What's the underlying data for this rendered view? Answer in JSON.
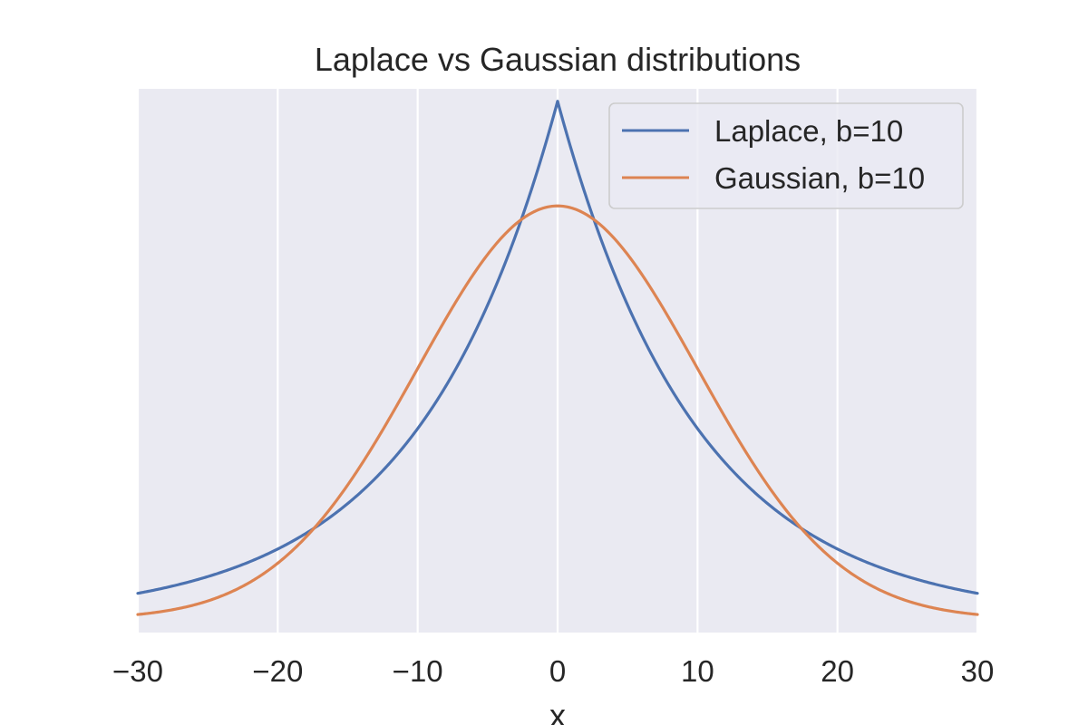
{
  "chart_data": {
    "type": "line",
    "title": "Laplace vs Gaussian distributions",
    "xlabel": "x",
    "ylabel": "",
    "xlim": [
      -30,
      30
    ],
    "x_ticks": [
      -30,
      -20,
      -10,
      0,
      10,
      20,
      30
    ],
    "x_tick_labels": [
      "−30",
      "−20",
      "−10",
      "0",
      "10",
      "20",
      "30"
    ],
    "y_ticks_visible": false,
    "grid": "vertical",
    "legend_position": "top-right",
    "series": [
      {
        "name": "Laplace, b=10",
        "color": "#4c72b0",
        "x": [
          -30,
          -25,
          -20,
          -17.5,
          -15,
          -10,
          -5,
          -2.5,
          0,
          2.5,
          5,
          10,
          15,
          17.5,
          20,
          25,
          30
        ],
        "y": [
          0.00249,
          0.0041,
          0.00677,
          0.00869,
          0.01116,
          0.01839,
          0.03033,
          0.03894,
          0.05,
          0.03894,
          0.03033,
          0.01839,
          0.01116,
          0.00869,
          0.00677,
          0.0041,
          0.00249
        ]
      },
      {
        "name": "Gaussian, b=10",
        "color": "#dd8452",
        "x": [
          -30,
          -25,
          -20,
          -17.5,
          -15,
          -10,
          -5,
          -2.5,
          0,
          2.5,
          5,
          10,
          15,
          17.5,
          20,
          25,
          30
        ],
        "y": [
          0.000445,
          0.001753,
          0.005399,
          0.008628,
          0.012951,
          0.024197,
          0.035207,
          0.038667,
          0.039894,
          0.038667,
          0.035207,
          0.024197,
          0.012951,
          0.008628,
          0.005399,
          0.001753,
          0.000445
        ]
      }
    ]
  },
  "colors": {
    "plot_background": "#eaeaf2",
    "grid": "#ffffff",
    "text": "#262626"
  }
}
